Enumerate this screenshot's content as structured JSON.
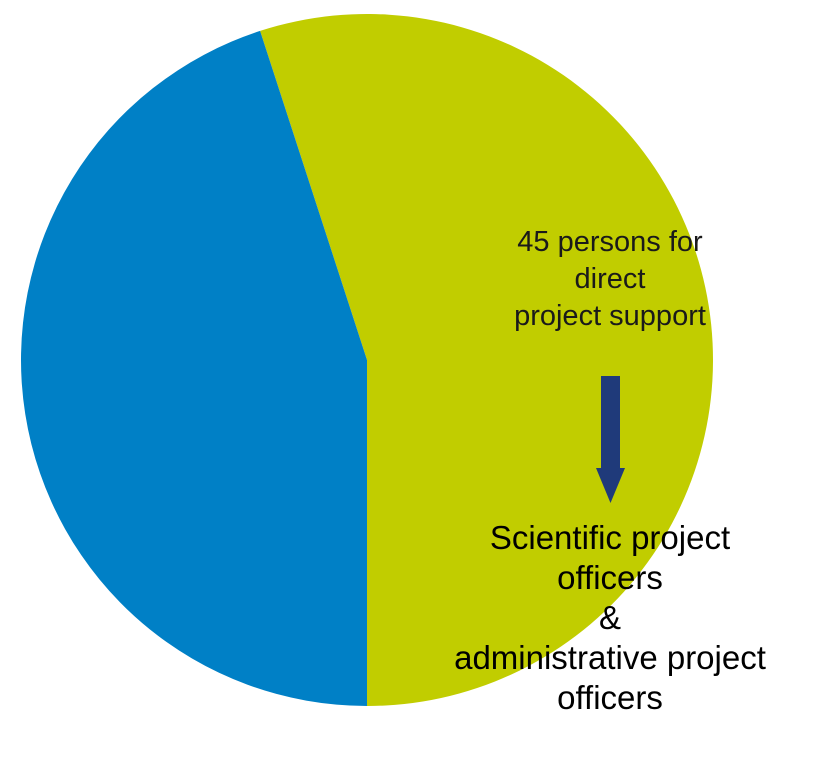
{
  "chart_data": {
    "type": "pie",
    "slices": [
      {
        "share": 0.55,
        "color": "#c1cd00"
      },
      {
        "share": 0.45,
        "color": "#0080c6"
      }
    ],
    "annotations": {
      "top_lines": [
        "45 persons for",
        "direct",
        "project support"
      ],
      "bottom_lines": [
        "Scientific project",
        "officers",
        "&",
        "administrative project",
        "officers"
      ],
      "arrow_color": "#1f3a7a"
    }
  }
}
